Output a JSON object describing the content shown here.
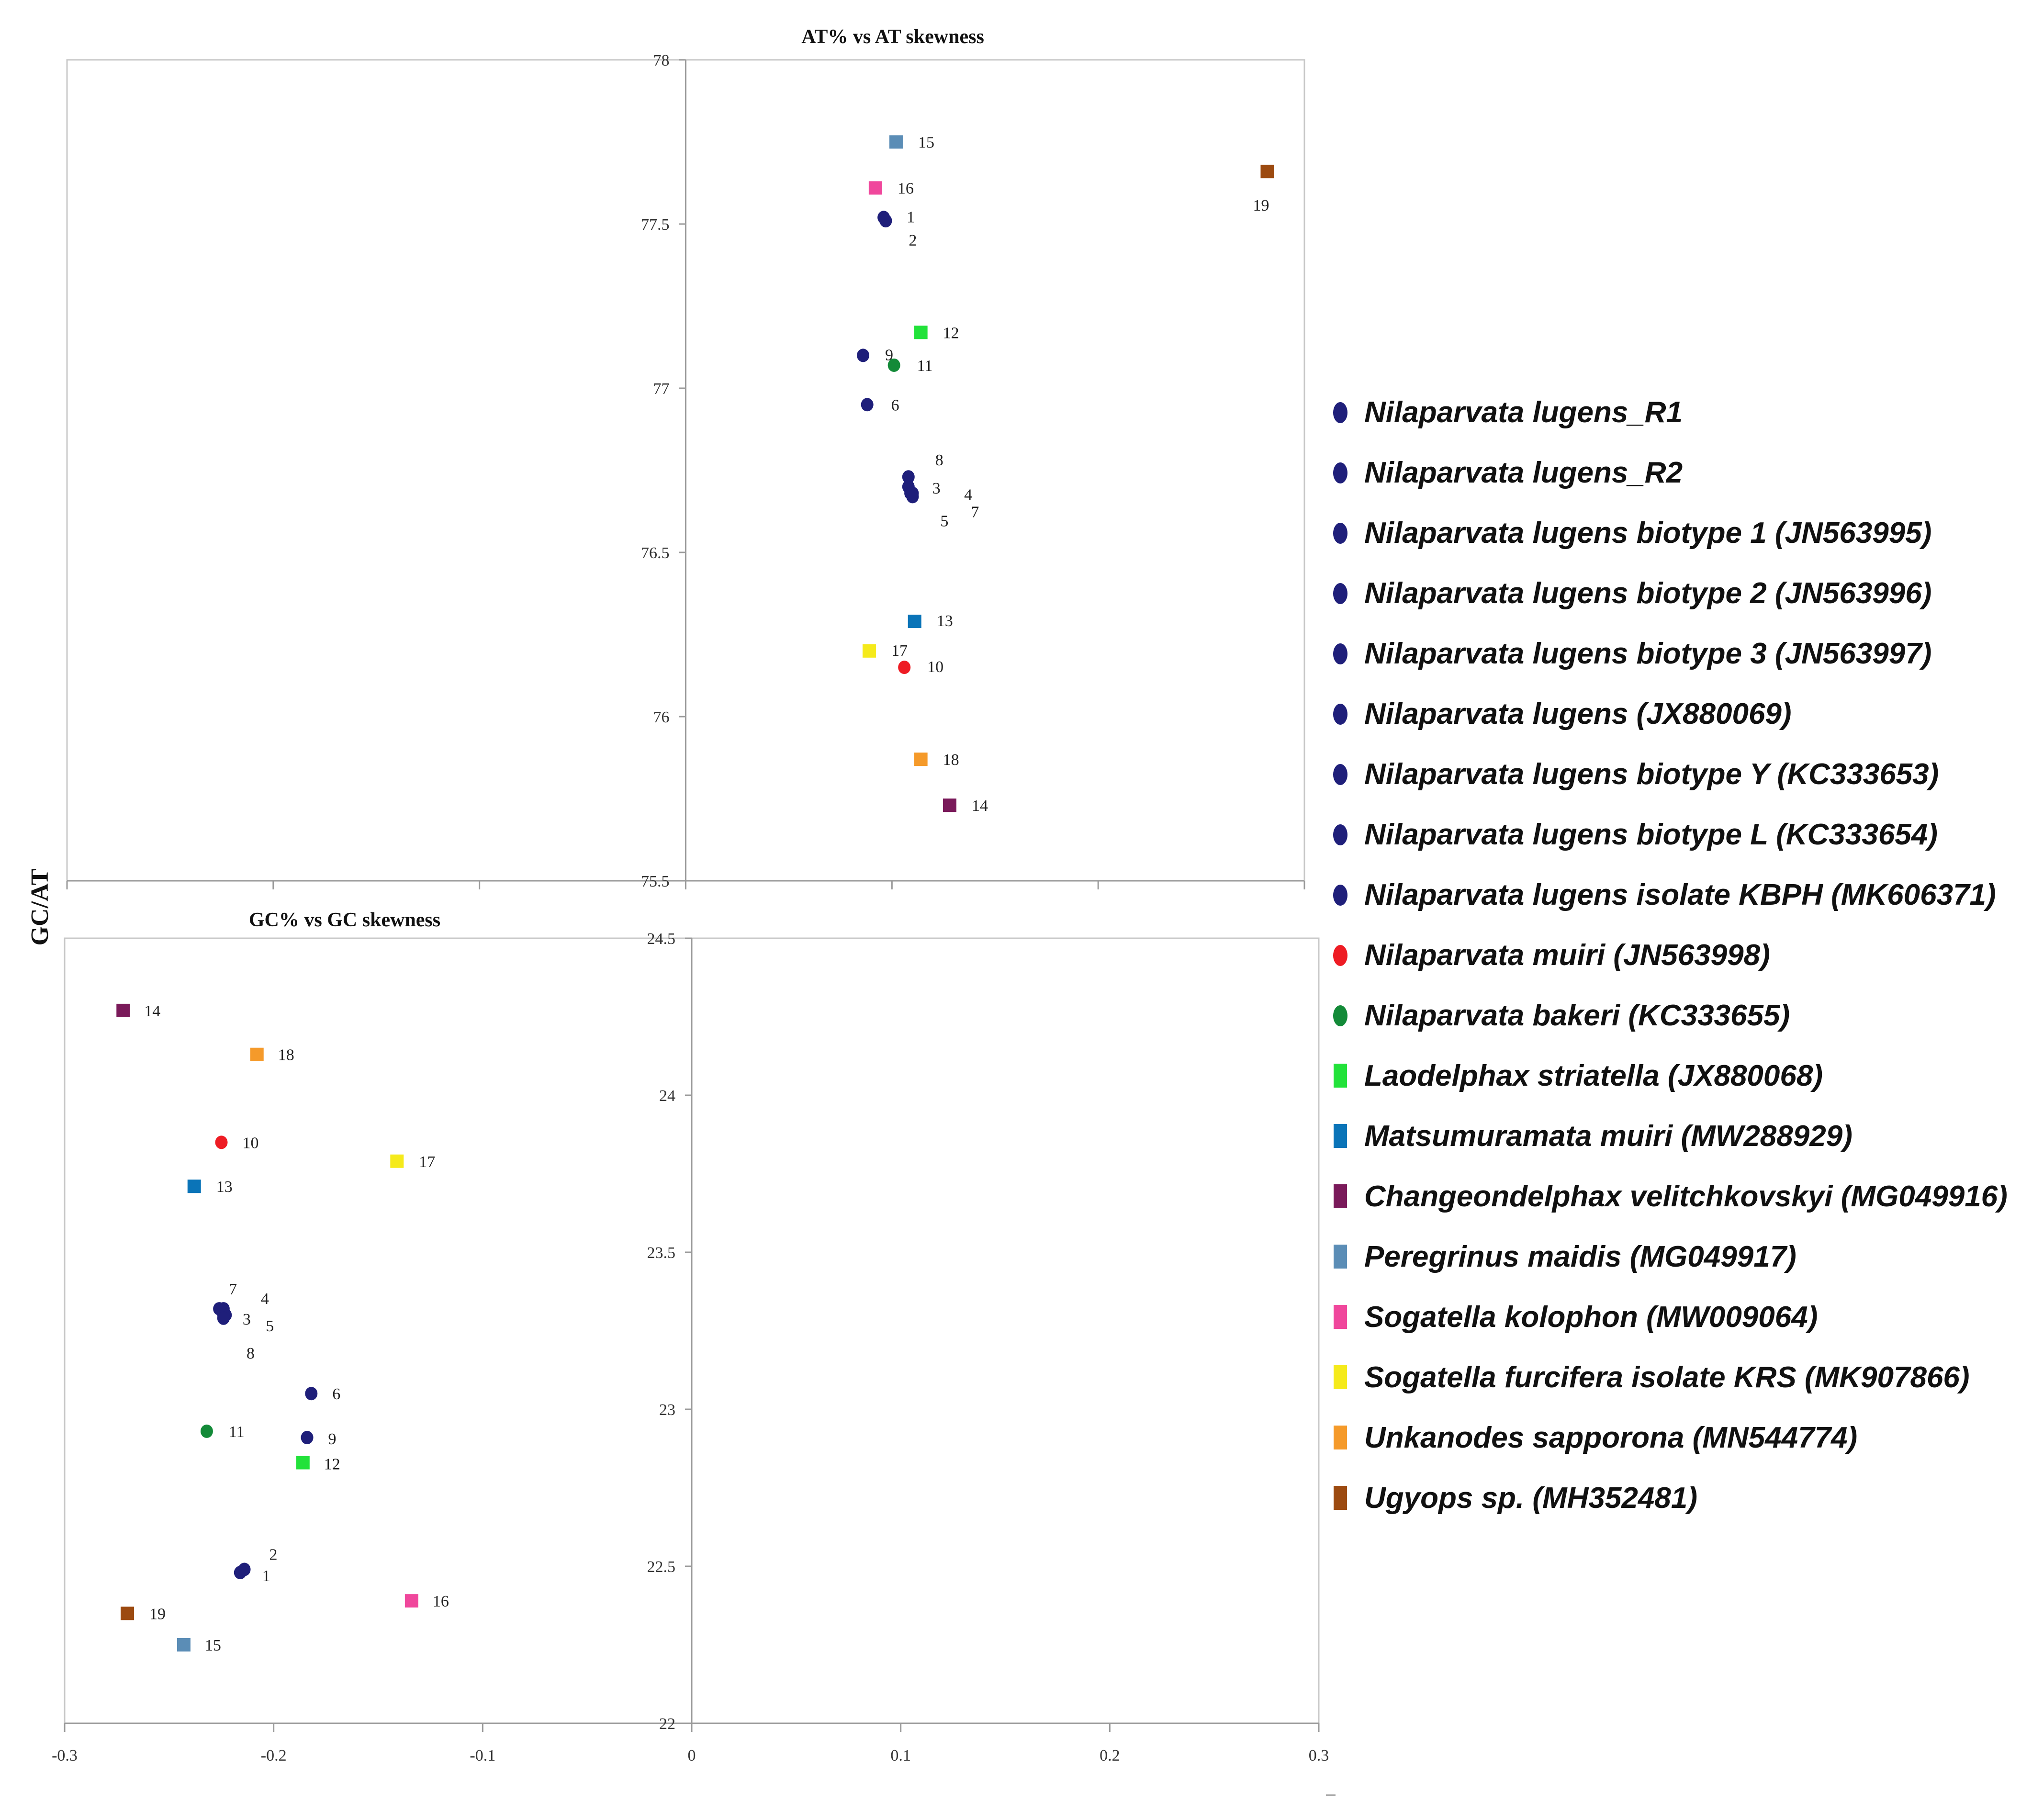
{
  "y_axis_label": "GC/AT",
  "chart_data": [
    {
      "type": "scatter",
      "title": "AT% vs AT skewness",
      "xlabel": "",
      "ylabel": "",
      "xlim": [
        -0.3,
        0.3
      ],
      "ylim": [
        75.5,
        78
      ],
      "yticks": [
        "75.5",
        "76",
        "76.5",
        "77",
        "77.5",
        "78"
      ],
      "xticks": [],
      "points": [
        {
          "label": "1",
          "x": 0.096,
          "y": 77.52
        },
        {
          "label": "2",
          "x": 0.097,
          "y": 77.51
        },
        {
          "label": "3",
          "x": 0.108,
          "y": 76.7
        },
        {
          "label": "4",
          "x": 0.109,
          "y": 76.68
        },
        {
          "label": "5",
          "x": 0.11,
          "y": 76.67
        },
        {
          "label": "6",
          "x": 0.088,
          "y": 76.95
        },
        {
          "label": "7",
          "x": 0.11,
          "y": 76.68
        },
        {
          "label": "8",
          "x": 0.108,
          "y": 76.73
        },
        {
          "label": "9",
          "x": 0.086,
          "y": 77.1
        },
        {
          "label": "10",
          "x": 0.106,
          "y": 76.15
        },
        {
          "label": "11",
          "x": 0.101,
          "y": 77.07
        },
        {
          "label": "12",
          "x": 0.114,
          "y": 77.17
        },
        {
          "label": "13",
          "x": 0.111,
          "y": 76.29
        },
        {
          "label": "14",
          "x": 0.128,
          "y": 75.73
        },
        {
          "label": "15",
          "x": 0.102,
          "y": 77.75
        },
        {
          "label": "16",
          "x": 0.092,
          "y": 77.61
        },
        {
          "label": "17",
          "x": 0.089,
          "y": 76.2
        },
        {
          "label": "18",
          "x": 0.114,
          "y": 75.87
        },
        {
          "label": "19",
          "x": 0.282,
          "y": 77.66
        }
      ]
    },
    {
      "type": "scatter",
      "title": "GC% vs GC skewness",
      "xlabel": "",
      "ylabel": "",
      "xlim": [
        -0.3,
        0.3
      ],
      "ylim": [
        22,
        24.5
      ],
      "yticks": [
        "22",
        "22.5",
        "23",
        "23.5",
        "24",
        "24.5"
      ],
      "xticks": [
        "-0.3",
        "-0.2",
        "-0.1",
        "0",
        "0.1",
        "0.2",
        "0.3"
      ],
      "points": [
        {
          "label": "1",
          "x": -0.216,
          "y": 22.48
        },
        {
          "label": "2",
          "x": -0.214,
          "y": 22.49
        },
        {
          "label": "3",
          "x": -0.224,
          "y": 23.3
        },
        {
          "label": "4",
          "x": -0.224,
          "y": 23.32
        },
        {
          "label": "5",
          "x": -0.223,
          "y": 23.3
        },
        {
          "label": "6",
          "x": -0.182,
          "y": 23.05
        },
        {
          "label": "7",
          "x": -0.226,
          "y": 23.32
        },
        {
          "label": "8",
          "x": -0.224,
          "y": 23.29
        },
        {
          "label": "9",
          "x": -0.184,
          "y": 22.91
        },
        {
          "label": "10",
          "x": -0.225,
          "y": 23.85
        },
        {
          "label": "11",
          "x": -0.232,
          "y": 22.93
        },
        {
          "label": "12",
          "x": -0.186,
          "y": 22.83
        },
        {
          "label": "13",
          "x": -0.238,
          "y": 23.71
        },
        {
          "label": "14",
          "x": -0.272,
          "y": 24.27
        },
        {
          "label": "15",
          "x": -0.243,
          "y": 22.25
        },
        {
          "label": "16",
          "x": -0.134,
          "y": 22.39
        },
        {
          "label": "17",
          "x": -0.141,
          "y": 23.79
        },
        {
          "label": "18",
          "x": -0.208,
          "y": 24.13
        },
        {
          "label": "19",
          "x": -0.27,
          "y": 22.35
        }
      ]
    }
  ],
  "series_styles": [
    {
      "id": "1",
      "shape": "circle",
      "color": "#1f1f7a"
    },
    {
      "id": "2",
      "shape": "circle",
      "color": "#1f1f7a"
    },
    {
      "id": "3",
      "shape": "circle",
      "color": "#1f1f7a"
    },
    {
      "id": "4",
      "shape": "circle",
      "color": "#1f1f7a"
    },
    {
      "id": "5",
      "shape": "circle",
      "color": "#1f1f7a"
    },
    {
      "id": "6",
      "shape": "circle",
      "color": "#1f1f7a"
    },
    {
      "id": "7",
      "shape": "circle",
      "color": "#1f1f7a"
    },
    {
      "id": "8",
      "shape": "circle",
      "color": "#1f1f7a"
    },
    {
      "id": "9",
      "shape": "circle",
      "color": "#1f1f7a"
    },
    {
      "id": "10",
      "shape": "circle",
      "color": "#ee1c24"
    },
    {
      "id": "11",
      "shape": "circle",
      "color": "#138a38"
    },
    {
      "id": "12",
      "shape": "square",
      "color": "#22e23a"
    },
    {
      "id": "13",
      "shape": "square",
      "color": "#0a74b8"
    },
    {
      "id": "14",
      "shape": "square",
      "color": "#7a1a5a"
    },
    {
      "id": "15",
      "shape": "square",
      "color": "#5b8db6"
    },
    {
      "id": "16",
      "shape": "square",
      "color": "#f0479c"
    },
    {
      "id": "17",
      "shape": "square",
      "color": "#f5ea1b"
    },
    {
      "id": "18",
      "shape": "square",
      "color": "#f59a2a"
    },
    {
      "id": "19",
      "shape": "square",
      "color": "#9c4a10"
    }
  ],
  "legend": [
    {
      "text": "Nilaparvata lugens_R1",
      "shape": "circle",
      "color": "#1f1f7a"
    },
    {
      "text": "Nilaparvata lugens_R2",
      "shape": "circle",
      "color": "#1f1f7a"
    },
    {
      "text": "Nilaparvata lugens biotype 1 (JN563995)",
      "shape": "circle",
      "color": "#1f1f7a"
    },
    {
      "text": "Nilaparvata lugens biotype 2 (JN563996)",
      "shape": "circle",
      "color": "#1f1f7a"
    },
    {
      "text": "Nilaparvata lugens biotype 3 (JN563997)",
      "shape": "circle",
      "color": "#1f1f7a"
    },
    {
      "text": "Nilaparvata lugens (JX880069)",
      "shape": "circle",
      "color": "#1f1f7a"
    },
    {
      "text": "Nilaparvata lugens biotype Y (KC333653)",
      "shape": "circle",
      "color": "#1f1f7a"
    },
    {
      "text": "Nilaparvata lugens biotype L (KC333654)",
      "shape": "circle",
      "color": "#1f1f7a"
    },
    {
      "text": "Nilaparvata lugens isolate KBPH (MK606371)",
      "shape": "circle",
      "color": "#1f1f7a"
    },
    {
      "text": "Nilaparvata muiri (JN563998)",
      "shape": "circle",
      "color": "#ee1c24"
    },
    {
      "text": "Nilaparvata bakeri (KC333655)",
      "shape": "circle",
      "color": "#138a38"
    },
    {
      "text": "Laodelphax striatella (JX880068)",
      "shape": "square",
      "color": "#22e23a"
    },
    {
      "text": "Matsumuramata muiri (MW288929)",
      "shape": "square",
      "color": "#0a74b8"
    },
    {
      "text": "Changeondelphax velitchkovskyi (MG049916)",
      "shape": "square",
      "color": "#7a1a5a"
    },
    {
      "text": "Peregrinus maidis (MG049917)",
      "shape": "square",
      "color": "#5b8db6"
    },
    {
      "text": "Sogatella kolophon (MW009064)",
      "shape": "square",
      "color": "#f0479c"
    },
    {
      "text": "Sogatella furcifera isolate KRS (MK907866)",
      "shape": "square",
      "color": "#f5ea1b"
    },
    {
      "text": "Unkanodes sapporona (MN544774)",
      "shape": "square",
      "color": "#f59a2a"
    },
    {
      "text": "Ugyops sp. (MH352481)",
      "shape": "square",
      "color": "#9c4a10"
    }
  ]
}
